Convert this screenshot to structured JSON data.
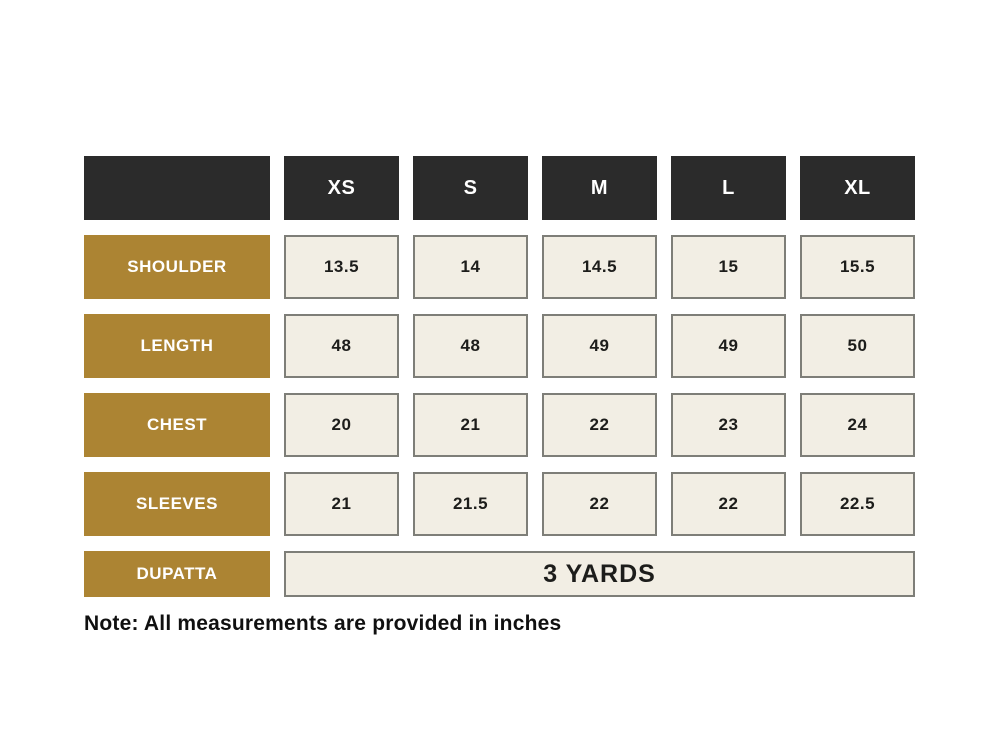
{
  "chart_data": {
    "type": "table",
    "columns": [
      "",
      "XS",
      "S",
      "M",
      "L",
      "XL"
    ],
    "rows": [
      {
        "label": "SHOULDER",
        "values": [
          "13.5",
          "14",
          "14.5",
          "15",
          "15.5"
        ]
      },
      {
        "label": "LENGTH",
        "values": [
          "48",
          "48",
          "49",
          "49",
          "50"
        ]
      },
      {
        "label": "CHEST",
        "values": [
          "20",
          "21",
          "22",
          "23",
          "24"
        ]
      },
      {
        "label": "SLEEVES",
        "values": [
          "21",
          "21.5",
          "22",
          "22",
          "22.5"
        ]
      },
      {
        "label": "DUPATTA",
        "values": [
          "3 YARDS"
        ],
        "span": 5
      }
    ],
    "note": "Note: All measurements are provided in inches",
    "units": "inches"
  },
  "colors": {
    "header_bg": "#2b2b2b",
    "row_label_bg": "#ac8433",
    "value_cell_bg": "#f2eee4",
    "value_cell_border": "#7e7e78",
    "header_text": "#ffffff",
    "value_text": "#1d1d1b",
    "page_bg": "#ffffff"
  }
}
